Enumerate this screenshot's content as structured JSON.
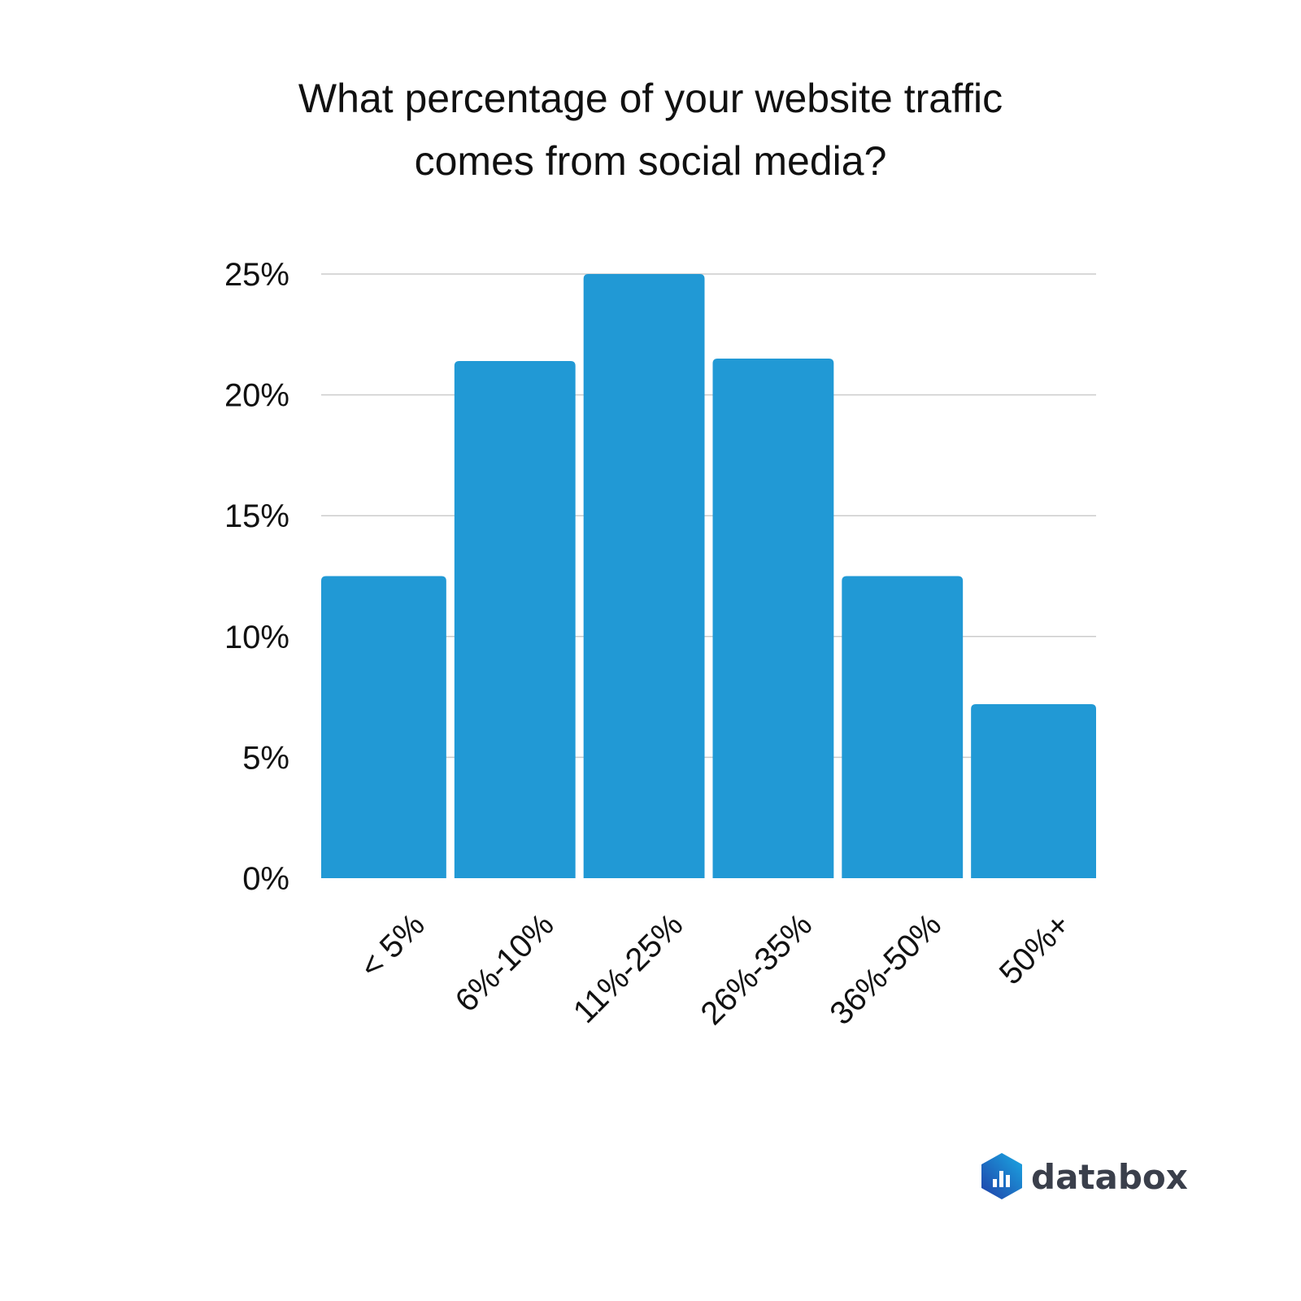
{
  "chart_data": {
    "type": "bar",
    "title_lines": [
      "What percentage of your website traffic",
      "comes from social media?"
    ],
    "categories": [
      "< 5%",
      "6%-10%",
      "11%-25%",
      "26%-35%",
      "36%-50%",
      "50%+"
    ],
    "values": [
      12.5,
      21.4,
      25.0,
      21.5,
      12.5,
      7.2
    ],
    "y_ticks": [
      "0%",
      "5%",
      "10%",
      "15%",
      "20%",
      "25%"
    ],
    "ylim": [
      0,
      25
    ],
    "grid": true,
    "bar_color": "#2199d5",
    "grid_color": "#cccccc"
  },
  "branding": {
    "logo_text": "databox",
    "logo_icon": "databox-hexagon-icon",
    "logo_colors": [
      "#1f3fa8",
      "#1ba9e3"
    ]
  }
}
